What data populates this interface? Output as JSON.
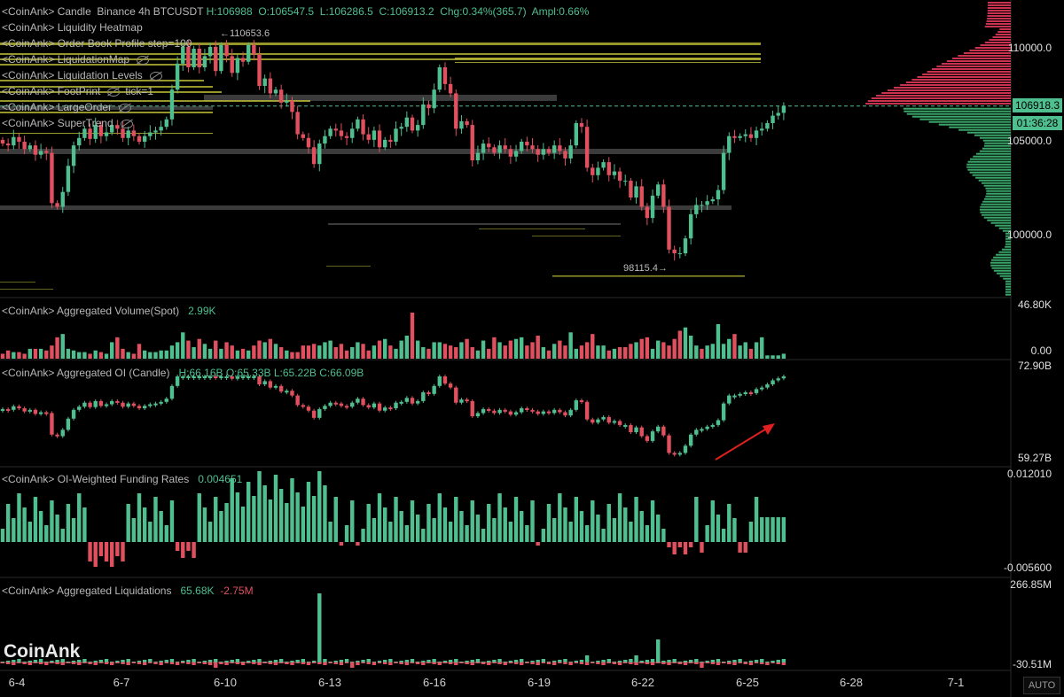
{
  "legends": {
    "candle": {
      "prefix": "<CoinAnk>",
      "name": "Candle",
      "market": "Binance 4h BTCUSDT",
      "high": "H:106988",
      "open": "O:106547.5",
      "low": "L:106286.5",
      "close": "C:106913.2",
      "change": "Chg:0.34%(365.7)",
      "amplitude": "Ampl:0.66%"
    },
    "overlays": [
      {
        "text": "<CoinAnk> Liquidity Heatmap",
        "hidden": false
      },
      {
        "text": "<CoinAnk> Order Book Profile   step=100",
        "hidden": false
      },
      {
        "text": "<CoinAnk> LiquidationMap",
        "hidden": true
      },
      {
        "text": "<CoinAnk> Liquidation Levels",
        "hidden": true
      },
      {
        "text": "<CoinAnk> FootPrint",
        "hidden": true,
        "suffix": "tick=1"
      },
      {
        "text": "<CoinAnk> LargeOrder",
        "hidden": true
      },
      {
        "text": "<CoinAnk> SuperTrend",
        "hidden": true
      }
    ],
    "volume": {
      "title": "<CoinAnk> Aggregated Volume(Spot)",
      "value": "2.99K"
    },
    "oi": {
      "title": "<CoinAnk> Aggregated OI (Candle)",
      "values": "H:66.16B  O:65.33B  L:65.22B  C:66.09B"
    },
    "funding": {
      "title": "<CoinAnk> OI-Weighted Funding Rates",
      "value": "0.004651"
    },
    "liquidations": {
      "title": "<CoinAnk> Aggregated Liquidations",
      "long": "65.68K",
      "short": "-2.75M"
    }
  },
  "annotations": {
    "high_marker": "←110653.6",
    "low_marker": "98115.4→"
  },
  "price_tags": {
    "last_price": "106918.3",
    "countdown": "01:36:28"
  },
  "watermark": "CoinAnk",
  "auto_button": "AUTO",
  "x_ticks": [
    "6-4",
    "6-7",
    "6-10",
    "6-13",
    "6-16",
    "6-19",
    "6-22",
    "6-25",
    "6-28",
    "7-1"
  ],
  "colors": {
    "up": "#4fbf8f",
    "down": "#e0505f",
    "background": "#000000",
    "ask_profile": "#c8324e",
    "bid_profile": "#3aa66a",
    "heatmap": "#c8c83a"
  },
  "chart_data": [
    {
      "type": "candlestick",
      "title": "Candle Binance 4h BTCUSDT",
      "y_ticks": [
        "110000.0",
        "105000.0",
        "100000.0"
      ],
      "ylim": [
        97200,
        113000
      ],
      "start_date": "2025-06-04",
      "interval_hours": 4,
      "open": [
        105100,
        104900,
        104800,
        105250,
        105000,
        104600,
        104800,
        104300,
        104500,
        104400,
        101700,
        101500,
        102300,
        103700,
        104800,
        105200,
        105700,
        105150,
        105900,
        105300,
        105500,
        105900,
        105700,
        105200,
        105600,
        105300,
        105000,
        105300,
        105500,
        105600,
        105800,
        106200,
        107800,
        109200,
        110100,
        109000,
        110000,
        109000,
        109600,
        110100,
        108800,
        110200,
        109600,
        108700,
        109500,
        109300,
        110200,
        109700,
        108000,
        108400,
        107600,
        107800,
        107100,
        107200,
        106600,
        105400,
        105200,
        104700,
        103800,
        104900,
        105300,
        105700,
        105600,
        105300,
        105200,
        105700,
        106200,
        105400,
        105100,
        105600,
        104700,
        105100,
        105000,
        105700,
        105800,
        106300,
        105600,
        105900,
        107000,
        106800,
        107800,
        109000,
        108100,
        107600,
        105700,
        106100,
        105900,
        104000,
        104400,
        104900,
        104700,
        104400,
        104800,
        104600,
        104200,
        104500,
        105000,
        104800,
        104600,
        104300,
        104600,
        104400,
        104800,
        104500,
        104100,
        104800,
        106000,
        105800,
        103600,
        103200,
        103600,
        103900,
        103200,
        103400,
        102900,
        102900,
        102000,
        102600,
        101500,
        100900,
        102100,
        102700,
        101500,
        99200,
        99000,
        99000,
        99800,
        101100,
        101600,
        101600,
        101800,
        101900,
        102400,
        104400,
        105300,
        105200,
        105300,
        105400,
        105200,
        105600,
        105700,
        106000,
        106400,
        106550
      ],
      "close": [
        104900,
        104800,
        105250,
        105000,
        104600,
        104800,
        104300,
        104500,
        104400,
        101700,
        101500,
        102300,
        103700,
        104800,
        105200,
        105700,
        105150,
        105900,
        105300,
        105500,
        105900,
        105700,
        105200,
        105600,
        105300,
        105000,
        105300,
        105500,
        105600,
        105800,
        106200,
        107800,
        109200,
        110100,
        109000,
        110000,
        109000,
        109600,
        110100,
        108800,
        110200,
        109600,
        108700,
        109500,
        109300,
        110200,
        109700,
        108000,
        108400,
        107600,
        107800,
        107100,
        107200,
        106600,
        105400,
        105200,
        104700,
        103800,
        104900,
        105300,
        105700,
        105600,
        105300,
        105200,
        105700,
        106200,
        105400,
        105100,
        105600,
        104700,
        105100,
        105000,
        105700,
        105800,
        106300,
        105600,
        105900,
        107000,
        106800,
        107800,
        109000,
        108100,
        107600,
        105700,
        106100,
        105900,
        104000,
        104400,
        104900,
        104700,
        104400,
        104800,
        104600,
        104200,
        104500,
        105000,
        104800,
        104600,
        104300,
        104600,
        104400,
        104800,
        104500,
        104100,
        104800,
        106000,
        105800,
        103600,
        103200,
        103600,
        103900,
        103200,
        103400,
        102900,
        102900,
        102000,
        102600,
        101500,
        100900,
        102100,
        102700,
        101500,
        99200,
        99000,
        99000,
        99800,
        101100,
        101600,
        101600,
        101800,
        101900,
        102400,
        104400,
        105300,
        105200,
        105300,
        105400,
        105200,
        105600,
        105700,
        106000,
        106400,
        106550,
        106913
      ],
      "high_marker": 110653.6,
      "low_marker": 98115.4,
      "last_price": 106918.3
    },
    {
      "type": "bar",
      "title": "Aggregated Volume(Spot)",
      "y_ticks": [
        "46.80K",
        "0.00"
      ],
      "ylim": [
        0,
        46800
      ],
      "values": [
        3,
        5,
        4,
        4,
        3,
        6,
        6,
        6,
        5,
        8,
        13,
        15,
        6,
        5,
        4,
        4,
        3,
        5,
        4,
        3,
        10,
        13,
        6,
        4,
        3,
        9,
        5,
        4,
        4,
        5,
        5,
        8,
        10,
        16,
        11,
        7,
        12,
        9,
        6,
        11,
        6,
        10,
        8,
        5,
        6,
        5,
        8,
        11,
        10,
        12,
        9,
        7,
        5,
        4,
        4,
        8,
        8,
        9,
        8,
        10,
        11,
        7,
        9,
        5,
        7,
        10,
        9,
        5,
        8,
        11,
        12,
        8,
        6,
        11,
        14,
        28,
        11,
        7,
        6,
        10,
        10,
        9,
        8,
        7,
        10,
        12,
        7,
        5,
        11,
        6,
        13,
        10,
        8,
        11,
        12,
        13,
        8,
        10,
        14,
        7,
        5,
        9,
        11,
        8,
        16,
        6,
        8,
        10,
        15,
        8,
        8,
        5,
        6,
        7,
        7,
        9,
        10,
        12,
        13,
        6,
        11,
        10,
        8,
        12,
        17,
        19,
        14,
        8,
        6,
        8,
        9,
        21,
        9,
        12,
        15,
        8,
        10,
        6,
        10,
        13,
        2,
        2,
        2,
        3
      ],
      "colors_up": [
        false,
        false,
        true,
        false,
        false,
        true,
        false,
        true,
        false,
        false,
        false,
        true,
        true,
        true,
        true,
        true,
        false,
        true,
        false,
        true,
        true,
        false,
        false,
        true,
        false,
        false,
        true,
        true,
        true,
        true,
        true,
        true,
        true,
        true,
        false,
        true,
        false,
        true,
        true,
        false,
        true,
        false,
        false,
        true,
        false,
        true,
        false,
        false,
        true,
        false,
        true,
        false,
        true,
        false,
        false,
        false,
        false,
        false,
        true,
        true,
        true,
        false,
        false,
        false,
        true,
        true,
        false,
        false,
        true,
        false,
        true,
        false,
        true,
        true,
        true,
        false,
        true,
        true,
        false,
        true,
        true,
        false,
        false,
        false,
        true,
        false,
        false,
        true,
        true,
        false,
        false,
        true,
        false,
        false,
        true,
        true,
        false,
        false,
        false,
        true,
        false,
        true,
        false,
        false,
        true,
        true,
        false,
        false,
        false,
        true,
        true,
        false,
        true,
        false,
        false,
        false,
        true,
        false,
        false,
        true,
        true,
        false,
        false,
        false,
        false,
        true,
        true,
        true,
        false,
        true,
        true,
        true,
        true,
        true,
        false,
        true,
        true,
        false,
        true,
        true,
        true,
        true,
        true,
        true
      ]
    },
    {
      "type": "candlestick",
      "title": "Aggregated OI (Candle)",
      "y_ticks": [
        "72.90B",
        "59.27B"
      ],
      "ylim": [
        59.27,
        72.9
      ],
      "high": 66.16,
      "open": 65.33,
      "low": 65.22,
      "close": 66.09
    },
    {
      "type": "bar",
      "title": "OI-Weighted Funding Rates",
      "y_ticks": [
        "0.012010",
        "-0.005600"
      ],
      "ylim": [
        -0.0056,
        0.01201
      ]
    },
    {
      "type": "bar",
      "title": "Aggregated Liquidations",
      "y_ticks": [
        "266.85M",
        "-30.51M"
      ],
      "ylim": [
        -30.51,
        266.85
      ]
    }
  ]
}
